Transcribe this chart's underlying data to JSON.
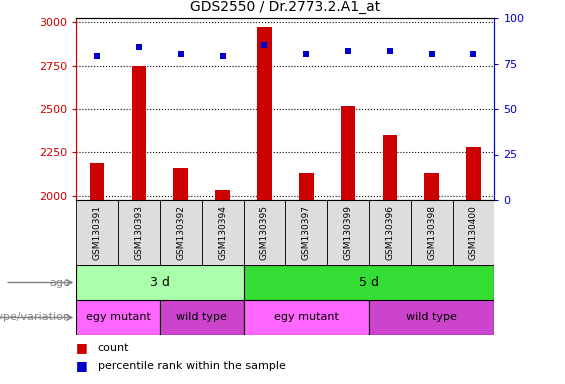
{
  "title": "GDS2550 / Dr.2773.2.A1_at",
  "samples": [
    "GSM130391",
    "GSM130393",
    "GSM130392",
    "GSM130394",
    "GSM130395",
    "GSM130397",
    "GSM130399",
    "GSM130396",
    "GSM130398",
    "GSM130400"
  ],
  "counts": [
    2190,
    2750,
    2160,
    2030,
    2975,
    2130,
    2520,
    2350,
    2130,
    2280
  ],
  "percentile_ranks": [
    79,
    84,
    80,
    79,
    85,
    80,
    82,
    82,
    80,
    80
  ],
  "ylim_left": [
    1975,
    3025
  ],
  "ylim_right": [
    0,
    100
  ],
  "yticks_left": [
    2000,
    2250,
    2500,
    2750,
    3000
  ],
  "yticks_right": [
    0,
    25,
    50,
    75,
    100
  ],
  "bar_color": "#CC0000",
  "scatter_color": "#0000CC",
  "age_groups": [
    {
      "label": "3 d",
      "start": 0,
      "end": 4,
      "color": "#AAFFAA"
    },
    {
      "label": "5 d",
      "start": 4,
      "end": 10,
      "color": "#33DD33"
    }
  ],
  "genotype_groups": [
    {
      "label": "egy mutant",
      "start": 0,
      "end": 2,
      "color": "#FF66FF"
    },
    {
      "label": "wild type",
      "start": 2,
      "end": 4,
      "color": "#CC44CC"
    },
    {
      "label": "egy mutant",
      "start": 4,
      "end": 7,
      "color": "#FF66FF"
    },
    {
      "label": "wild type",
      "start": 7,
      "end": 10,
      "color": "#CC44CC"
    }
  ],
  "age_label": "age",
  "genotype_label": "genotype/variation",
  "left_axis_color": "#CC0000",
  "right_axis_color": "#0000CC",
  "bar_width": 0.35,
  "background_color": "#FFFFFF",
  "grid_color": "#000000",
  "sample_box_color": "#DDDDDD",
  "label_text_color": "#888888"
}
